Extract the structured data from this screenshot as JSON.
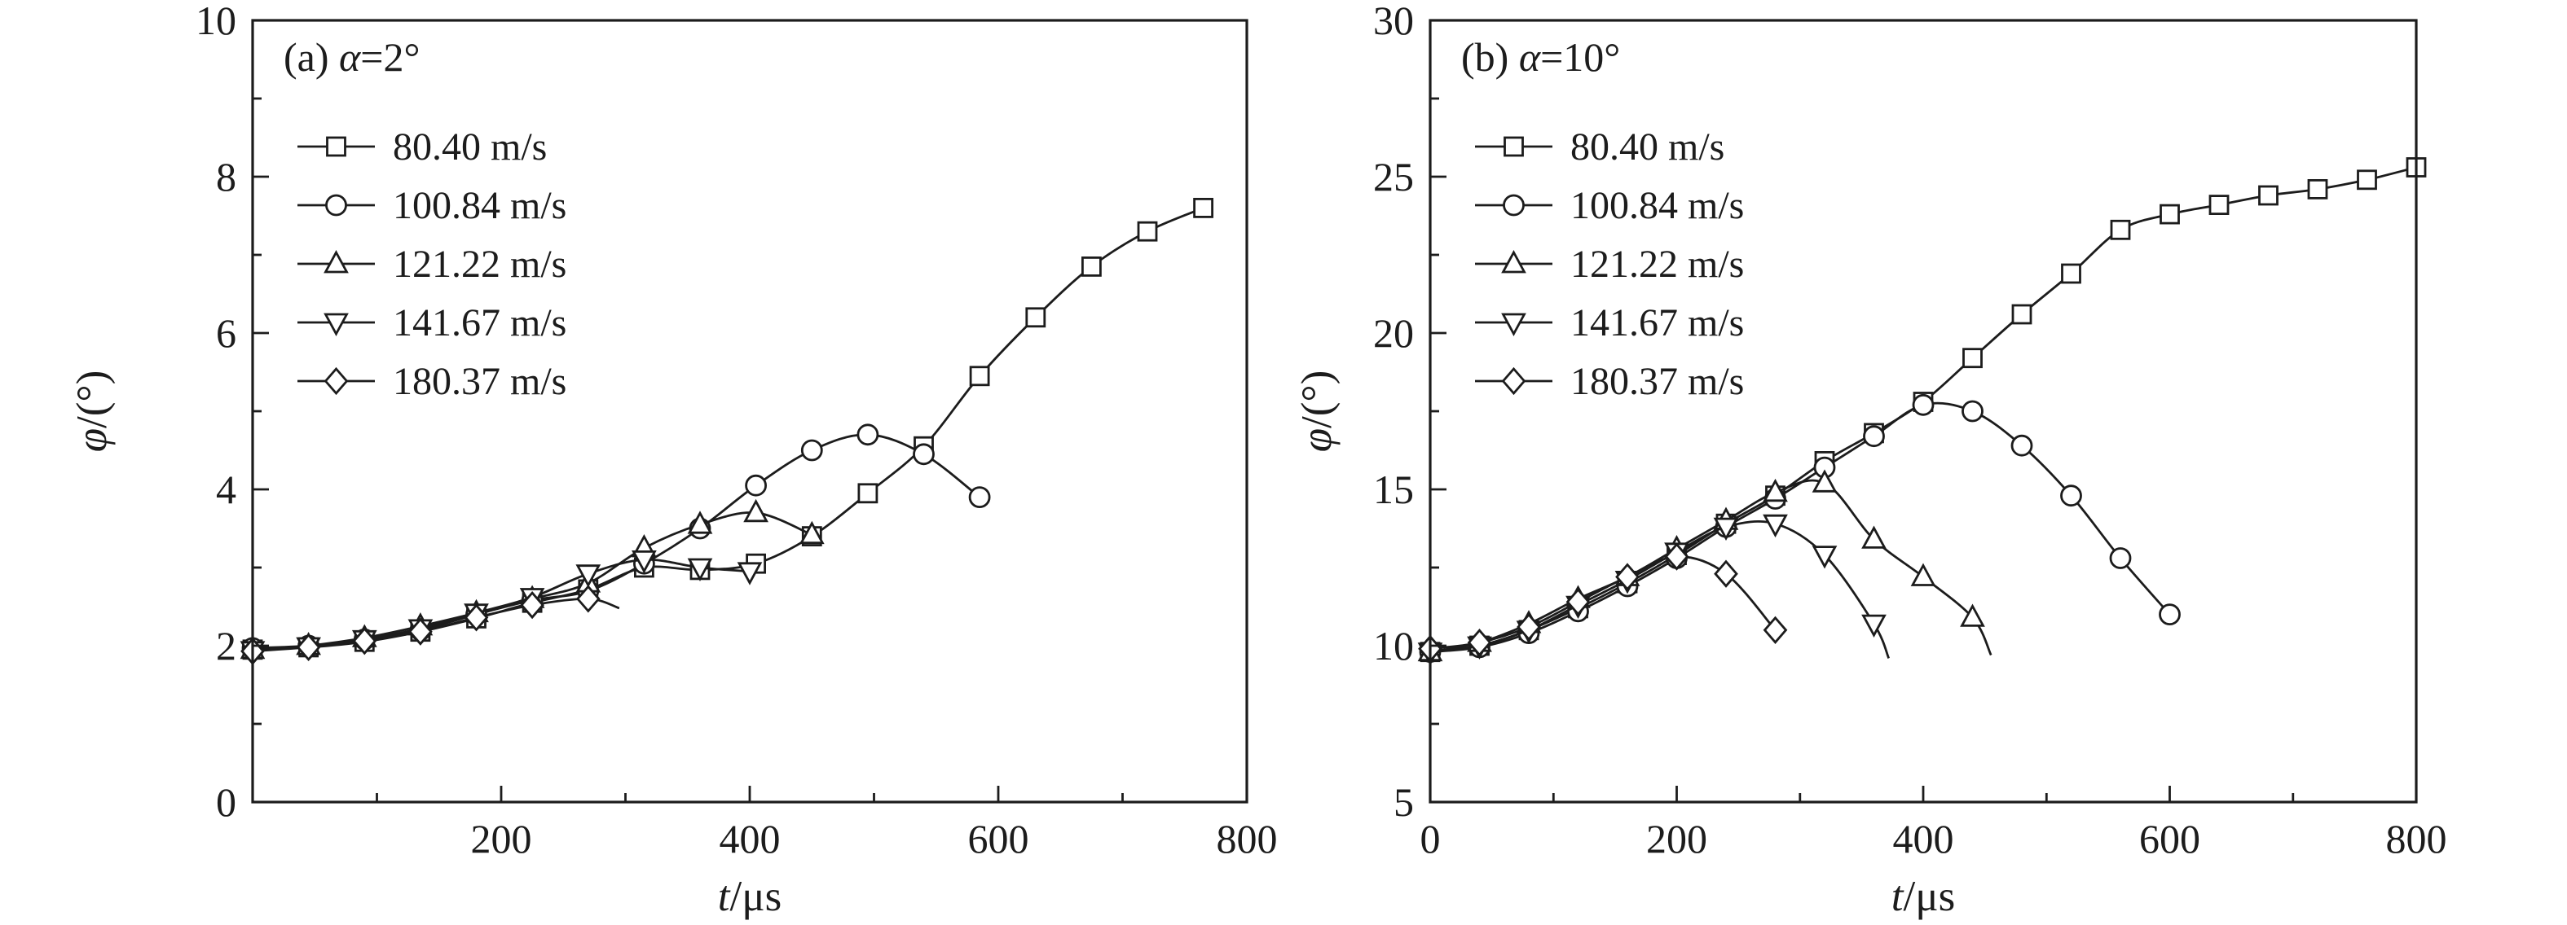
{
  "figure": {
    "background": "#ffffff",
    "line_color": "#1c1c1c"
  },
  "chart_data": [
    {
      "panel": "a",
      "type": "line",
      "title_segments": [
        {
          "text": "(a) ",
          "italic": false
        },
        {
          "text": "α",
          "italic": true
        },
        {
          "text": "=2°",
          "italic": false
        }
      ],
      "xlabel_segments": [
        {
          "text": "t",
          "italic": true
        },
        {
          "text": "/μs",
          "italic": false
        }
      ],
      "ylabel_segments": [
        {
          "text": "φ",
          "italic": true
        },
        {
          "text": "/(°)",
          "italic": false
        }
      ],
      "xlim": [
        0,
        800
      ],
      "ylim": [
        0,
        10
      ],
      "x_ticks": [
        {
          "v": 0,
          "label": ""
        },
        {
          "v": 200,
          "label": "200"
        },
        {
          "v": 400,
          "label": "400"
        },
        {
          "v": 600,
          "label": "600"
        },
        {
          "v": 800,
          "label": "800"
        }
      ],
      "x_minor": [
        100,
        300,
        500,
        700
      ],
      "y_ticks": [
        {
          "v": 0,
          "label": "0"
        },
        {
          "v": 2,
          "label": "2"
        },
        {
          "v": 4,
          "label": "4"
        },
        {
          "v": 6,
          "label": "6"
        },
        {
          "v": 8,
          "label": "8"
        },
        {
          "v": 10,
          "label": "10"
        }
      ],
      "y_minor": [
        1,
        3,
        5,
        7,
        9
      ],
      "legend_position": "upper-left",
      "grid": false,
      "series": [
        {
          "name": "80.40 m/s",
          "marker": "square",
          "points": [
            [
              0,
              1.95
            ],
            [
              45,
              1.98
            ],
            [
              90,
              2.05
            ],
            [
              135,
              2.18
            ],
            [
              180,
              2.35
            ],
            [
              225,
              2.55
            ],
            [
              270,
              2.72
            ],
            [
              315,
              3.0
            ],
            [
              360,
              2.97
            ],
            [
              405,
              3.05
            ],
            [
              450,
              3.4
            ],
            [
              495,
              3.95
            ],
            [
              540,
              4.55
            ],
            [
              585,
              5.45
            ],
            [
              630,
              6.2
            ],
            [
              675,
              6.85
            ],
            [
              720,
              7.3
            ],
            [
              765,
              7.6
            ]
          ],
          "tail": []
        },
        {
          "name": "100.84 m/s",
          "marker": "circle",
          "points": [
            [
              0,
              1.97
            ],
            [
              45,
              2.0
            ],
            [
              90,
              2.08
            ],
            [
              135,
              2.2
            ],
            [
              180,
              2.4
            ],
            [
              225,
              2.58
            ],
            [
              270,
              2.7
            ],
            [
              315,
              3.05
            ],
            [
              360,
              3.5
            ],
            [
              405,
              4.05
            ],
            [
              450,
              4.5
            ],
            [
              495,
              4.7
            ],
            [
              540,
              4.45
            ],
            [
              585,
              3.9
            ]
          ],
          "tail": []
        },
        {
          "name": "121.22 m/s",
          "marker": "triangle-up",
          "points": [
            [
              0,
              1.95
            ],
            [
              45,
              2.0
            ],
            [
              90,
              2.1
            ],
            [
              135,
              2.25
            ],
            [
              180,
              2.42
            ],
            [
              225,
              2.6
            ],
            [
              270,
              2.8
            ],
            [
              315,
              3.25
            ],
            [
              360,
              3.55
            ],
            [
              405,
              3.7
            ],
            [
              450,
              3.42
            ]
          ],
          "tail": []
        },
        {
          "name": "141.67 m/s",
          "marker": "triangle-down",
          "points": [
            [
              0,
              1.94
            ],
            [
              45,
              1.99
            ],
            [
              90,
              2.08
            ],
            [
              135,
              2.22
            ],
            [
              180,
              2.42
            ],
            [
              225,
              2.62
            ],
            [
              270,
              2.92
            ],
            [
              315,
              3.1
            ],
            [
              360,
              3.0
            ],
            [
              400,
              2.95
            ]
          ],
          "tail": []
        },
        {
          "name": "180.37 m/s",
          "marker": "diamond",
          "points": [
            [
              0,
              1.93
            ],
            [
              45,
              1.98
            ],
            [
              90,
              2.06
            ],
            [
              135,
              2.18
            ],
            [
              180,
              2.36
            ],
            [
              225,
              2.52
            ],
            [
              270,
              2.6
            ]
          ],
          "tail": [
            [
              295,
              2.48
            ]
          ]
        }
      ]
    },
    {
      "panel": "b",
      "type": "line",
      "title_segments": [
        {
          "text": "(b) ",
          "italic": false
        },
        {
          "text": "α",
          "italic": true
        },
        {
          "text": "=10°",
          "italic": false
        }
      ],
      "xlabel_segments": [
        {
          "text": "t",
          "italic": true
        },
        {
          "text": "/μs",
          "italic": false
        }
      ],
      "ylabel_segments": [
        {
          "text": "φ",
          "italic": true
        },
        {
          "text": "/(°)",
          "italic": false
        }
      ],
      "xlim": [
        0,
        800
      ],
      "ylim": [
        5,
        30
      ],
      "x_ticks": [
        {
          "v": 0,
          "label": "0"
        },
        {
          "v": 200,
          "label": "200"
        },
        {
          "v": 400,
          "label": "400"
        },
        {
          "v": 600,
          "label": "600"
        },
        {
          "v": 800,
          "label": "800"
        }
      ],
      "x_minor": [
        100,
        300,
        500,
        700
      ],
      "y_ticks": [
        {
          "v": 5,
          "label": "5"
        },
        {
          "v": 10,
          "label": "10"
        },
        {
          "v": 15,
          "label": "15"
        },
        {
          "v": 20,
          "label": "20"
        },
        {
          "v": 25,
          "label": "25"
        },
        {
          "v": 30,
          "label": "30"
        }
      ],
      "y_minor": [
        7.5,
        12.5,
        17.5,
        22.5,
        27.5
      ],
      "legend_position": "upper-left",
      "grid": false,
      "series": [
        {
          "name": "80.40 m/s",
          "marker": "square",
          "points": [
            [
              0,
              9.8
            ],
            [
              40,
              10.0
            ],
            [
              80,
              10.5
            ],
            [
              120,
              11.2
            ],
            [
              160,
              12.0
            ],
            [
              200,
              12.9
            ],
            [
              240,
              13.9
            ],
            [
              280,
              14.8
            ],
            [
              320,
              15.9
            ],
            [
              360,
              16.8
            ],
            [
              400,
              17.8
            ],
            [
              440,
              19.2
            ],
            [
              480,
              20.6
            ],
            [
              520,
              21.9
            ],
            [
              560,
              23.3
            ],
            [
              600,
              23.8
            ],
            [
              640,
              24.1
            ],
            [
              680,
              24.4
            ],
            [
              720,
              24.6
            ],
            [
              760,
              24.9
            ],
            [
              800,
              25.3
            ]
          ],
          "tail": []
        },
        {
          "name": "100.84 m/s",
          "marker": "circle",
          "points": [
            [
              0,
              9.8
            ],
            [
              40,
              9.95
            ],
            [
              80,
              10.4
            ],
            [
              120,
              11.1
            ],
            [
              160,
              11.9
            ],
            [
              200,
              12.8
            ],
            [
              240,
              13.8
            ],
            [
              280,
              14.7
            ],
            [
              320,
              15.7
            ],
            [
              360,
              16.7
            ],
            [
              400,
              17.7
            ],
            [
              440,
              17.5
            ],
            [
              480,
              16.4
            ],
            [
              520,
              14.8
            ],
            [
              560,
              12.8
            ],
            [
              600,
              11.0
            ]
          ],
          "tail": []
        },
        {
          "name": "121.22 m/s",
          "marker": "triangle-up",
          "points": [
            [
              0,
              9.8
            ],
            [
              40,
              10.1
            ],
            [
              80,
              10.7
            ],
            [
              120,
              11.5
            ],
            [
              160,
              12.2
            ],
            [
              200,
              13.1
            ],
            [
              240,
              14.0
            ],
            [
              280,
              14.9
            ],
            [
              320,
              15.2
            ],
            [
              360,
              13.4
            ],
            [
              400,
              12.2
            ],
            [
              440,
              10.9
            ]
          ],
          "tail": [
            [
              455,
              9.7
            ]
          ]
        },
        {
          "name": "141.67 m/s",
          "marker": "triangle-down",
          "points": [
            [
              0,
              9.8
            ],
            [
              40,
              10.0
            ],
            [
              80,
              10.5
            ],
            [
              120,
              11.3
            ],
            [
              160,
              12.1
            ],
            [
              200,
              13.0
            ],
            [
              240,
              13.8
            ],
            [
              280,
              13.9
            ],
            [
              320,
              12.9
            ],
            [
              360,
              10.7
            ]
          ],
          "tail": [
            [
              372,
              9.6
            ]
          ]
        },
        {
          "name": "180.37 m/s",
          "marker": "diamond",
          "points": [
            [
              0,
              9.9
            ],
            [
              40,
              10.1
            ],
            [
              80,
              10.6
            ],
            [
              120,
              11.4
            ],
            [
              160,
              12.2
            ],
            [
              200,
              12.85
            ],
            [
              240,
              12.3
            ],
            [
              280,
              10.5
            ]
          ],
          "tail": []
        }
      ]
    }
  ]
}
